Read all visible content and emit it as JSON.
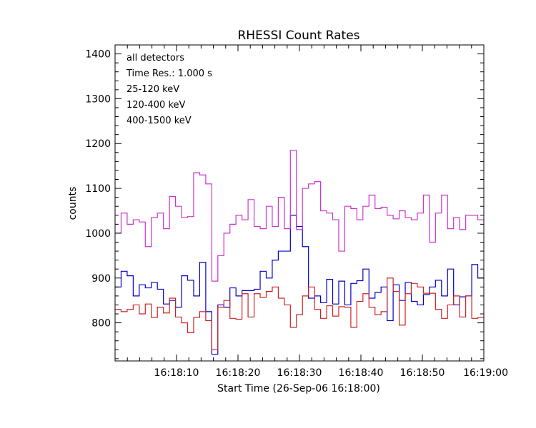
{
  "chart_data": {
    "type": "line",
    "title": "RHESSI Count Rates",
    "xlabel": "Start Time (26-Sep-06 16:18:00)",
    "ylabel": "counts",
    "xlim": [
      1,
      61
    ],
    "ylim": [
      715,
      1420
    ],
    "x_ticks": [
      {
        "x": 11,
        "label": "16:18:10"
      },
      {
        "x": 21,
        "label": "16:18:20"
      },
      {
        "x": 31,
        "label": "16:18:30"
      },
      {
        "x": 41,
        "label": "16:18:40"
      },
      {
        "x": 51,
        "label": "16:18:50"
      },
      {
        "x": 61,
        "label": "16:19:00"
      }
    ],
    "y_ticks": [
      {
        "y": 800,
        "label": "800"
      },
      {
        "y": 900,
        "label": "900"
      },
      {
        "y": 1000,
        "label": "1000"
      },
      {
        "y": 1100,
        "label": "1100"
      },
      {
        "y": 1200,
        "label": "1200"
      },
      {
        "y": 1300,
        "label": "1300"
      },
      {
        "y": 1400,
        "label": "1400"
      }
    ],
    "grid": false,
    "step": true,
    "annotations": [
      "all detectors",
      "Time Res.: 1.000 s"
    ],
    "series": [
      {
        "name": "25-120 keV",
        "color": "#0000cc",
        "values": [
          880,
          915,
          905,
          860,
          885,
          878,
          890,
          875,
          842,
          850,
          835,
          905,
          895,
          860,
          935,
          825,
          730,
          840,
          835,
          878,
          860,
          872,
          872,
          875,
          915,
          900,
          940,
          960,
          960,
          1040,
          1015,
          970,
          855,
          860,
          845,
          897,
          842,
          893,
          840,
          888,
          894,
          920,
          855,
          868,
          880,
          805,
          885,
          850,
          890,
          848,
          840,
          863,
          880,
          895,
          860,
          920,
          840,
          858,
          860,
          930,
          900
        ]
      },
      {
        "name": "120-400 keV",
        "color": "#cc33cc",
        "values": [
          1000,
          1045,
          1020,
          1030,
          1025,
          970,
          1035,
          1045,
          1010,
          1082,
          1060,
          1035,
          1037,
          1135,
          1130,
          1110,
          893,
          950,
          1000,
          1020,
          1040,
          1030,
          1075,
          1015,
          1010,
          1060,
          1015,
          1080,
          1010,
          1185,
          1008,
          1100,
          1110,
          1115,
          1050,
          1045,
          1030,
          960,
          1060,
          1055,
          1030,
          1060,
          1085,
          1055,
          1058,
          1040,
          1032,
          1050,
          1035,
          1030,
          1045,
          1085,
          980,
          1045,
          1085,
          1010,
          1035,
          1008,
          1040,
          1040,
          1030
        ]
      },
      {
        "name": "400-1500 keV",
        "color": "#cc2222",
        "values": [
          830,
          825,
          830,
          840,
          820,
          842,
          812,
          835,
          822,
          855,
          813,
          800,
          778,
          812,
          825,
          805,
          740,
          835,
          850,
          810,
          808,
          865,
          813,
          865,
          857,
          870,
          880,
          855,
          840,
          790,
          818,
          860,
          880,
          830,
          810,
          838,
          815,
          836,
          835,
          790,
          848,
          865,
          835,
          818,
          825,
          900,
          870,
          795,
          865,
          888,
          880,
          866,
          866,
          830,
          810,
          840,
          860,
          813,
          860,
          810,
          812
        ]
      }
    ]
  }
}
